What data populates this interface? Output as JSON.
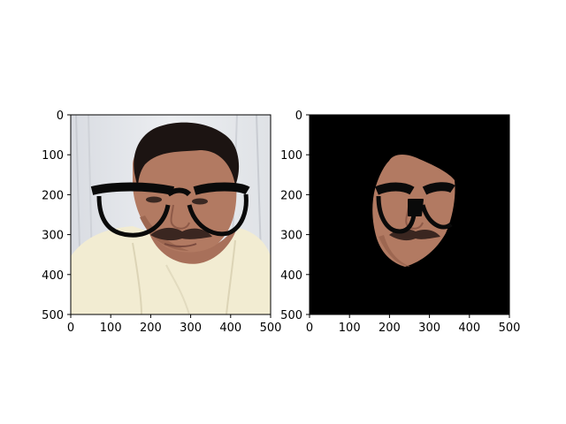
{
  "chart_data": [
    {
      "type": "image",
      "name": "original-photo-with-glasses",
      "xlim": [
        0,
        500
      ],
      "ylim": [
        500,
        0
      ],
      "xticks": [
        0,
        100,
        200,
        300,
        400,
        500
      ],
      "yticks": [
        0,
        100,
        200,
        300,
        400,
        500
      ],
      "xtick_labels": [
        "0",
        "100",
        "200",
        "300",
        "400",
        "500"
      ],
      "ytick_labels": [
        "0",
        "100",
        "200",
        "300",
        "400",
        "500"
      ],
      "grid": false
    },
    {
      "type": "image",
      "name": "masked-face-with-glasses",
      "xlim": [
        0,
        500
      ],
      "ylim": [
        500,
        0
      ],
      "xticks": [
        0,
        100,
        200,
        300,
        400,
        500
      ],
      "yticks": [
        0,
        100,
        200,
        300,
        400,
        500
      ],
      "xtick_labels": [
        "0",
        "100",
        "200",
        "300",
        "400",
        "500"
      ],
      "ytick_labels": [
        "0",
        "100",
        "200",
        "300",
        "400",
        "500"
      ],
      "background": "#000000",
      "grid": false
    }
  ],
  "colors": {
    "skin": "#b27a62",
    "hair": "#1c1412",
    "shirt": "#f2ecd2",
    "curtain": "#e4e6ea",
    "glasses": "#0a0a0a"
  }
}
